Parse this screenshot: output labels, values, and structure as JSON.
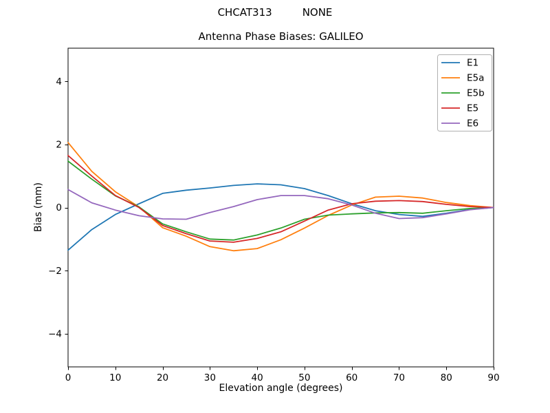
{
  "header": {
    "title_left": "CHCAT313",
    "title_right": "NONE"
  },
  "chart_data": {
    "type": "line",
    "title": "Antenna Phase Biases: GALILEO",
    "xlabel": "Elevation angle (degrees)",
    "ylabel": "Bias (mm)",
    "xlim": [
      0,
      90
    ],
    "ylim": [
      -5.05,
      5.05
    ],
    "xticks": [
      0,
      10,
      20,
      30,
      40,
      50,
      60,
      70,
      80,
      90
    ],
    "yticks": [
      -4,
      -2,
      0,
      2,
      4
    ],
    "ytick_labels": [
      "−4",
      "−2",
      "0",
      "2",
      "4"
    ],
    "grid": false,
    "legend_position": "upper right",
    "axis_color": "#000000",
    "background_color": "#ffffff",
    "legend_border_color": "#b0b0b0",
    "x": [
      0,
      5,
      10,
      15,
      20,
      25,
      30,
      35,
      40,
      45,
      50,
      55,
      60,
      65,
      70,
      75,
      80,
      85,
      90
    ],
    "series": [
      {
        "name": "E1",
        "color": "#1f77b4",
        "values": [
          -1.35,
          -0.7,
          -0.22,
          0.12,
          0.45,
          0.55,
          0.62,
          0.7,
          0.75,
          0.72,
          0.6,
          0.38,
          0.12,
          -0.1,
          -0.22,
          -0.28,
          -0.18,
          -0.06,
          0.0
        ]
      },
      {
        "name": "E5a",
        "color": "#ff7f0e",
        "values": [
          2.06,
          1.15,
          0.5,
          0.02,
          -0.64,
          -0.91,
          -1.24,
          -1.37,
          -1.3,
          -1.02,
          -0.65,
          -0.25,
          0.08,
          0.33,
          0.36,
          0.3,
          0.16,
          0.06,
          0.0
        ]
      },
      {
        "name": "E5b",
        "color": "#2ca02c",
        "values": [
          1.47,
          0.9,
          0.37,
          0.02,
          -0.52,
          -0.77,
          -1.0,
          -1.03,
          -0.87,
          -0.65,
          -0.37,
          -0.24,
          -0.2,
          -0.17,
          -0.16,
          -0.18,
          -0.1,
          -0.03,
          0.0
        ]
      },
      {
        "name": "E5",
        "color": "#d62728",
        "values": [
          1.65,
          1.0,
          0.38,
          0.0,
          -0.57,
          -0.83,
          -1.06,
          -1.1,
          -0.98,
          -0.77,
          -0.43,
          -0.08,
          0.12,
          0.2,
          0.22,
          0.19,
          0.1,
          0.03,
          0.0
        ]
      },
      {
        "name": "E6",
        "color": "#9467bd",
        "values": [
          0.57,
          0.15,
          -0.08,
          -0.26,
          -0.36,
          -0.37,
          -0.16,
          0.03,
          0.25,
          0.38,
          0.38,
          0.28,
          0.08,
          -0.18,
          -0.35,
          -0.32,
          -0.2,
          -0.07,
          0.0
        ]
      }
    ]
  }
}
